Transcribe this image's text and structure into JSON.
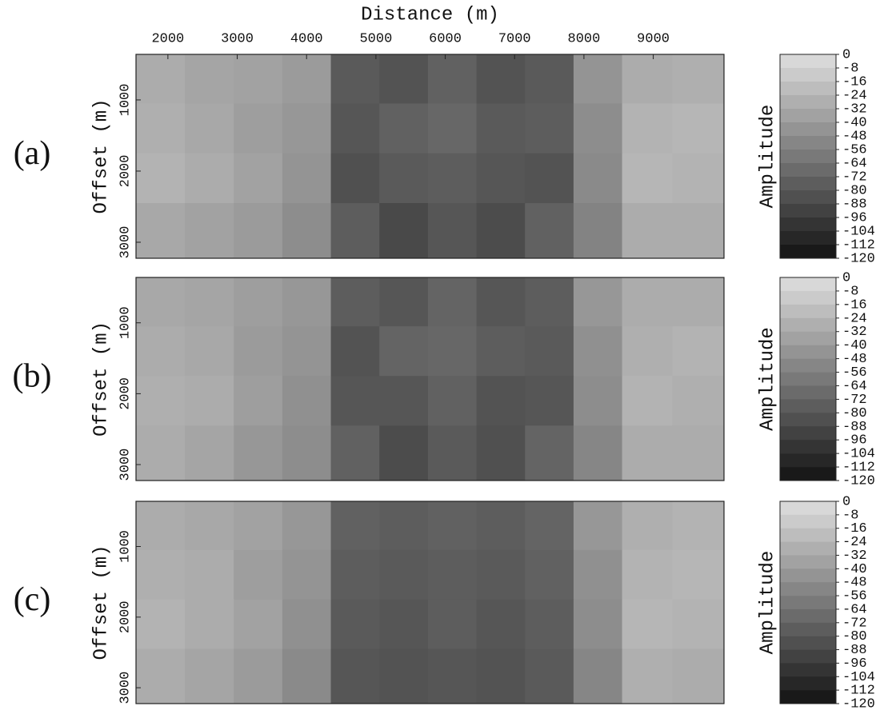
{
  "chart_data": [
    {
      "type": "heatmap",
      "title": "Distance (m)",
      "label": "(a)",
      "ylabel": "Offset (m)",
      "x": [
        1890,
        2600,
        3300,
        4000,
        4700,
        5400,
        6100,
        6800,
        7500,
        8200,
        8900,
        9650
      ],
      "y": [
        700,
        1400,
        2100,
        2800
      ],
      "z": [
        [
          -30,
          -34,
          -36,
          -40,
          -78,
          -82,
          -74,
          -82,
          -78,
          -44,
          -30,
          -28
        ],
        [
          -28,
          -32,
          -38,
          -42,
          -80,
          -74,
          -70,
          -78,
          -76,
          -48,
          -26,
          -24
        ],
        [
          -26,
          -30,
          -36,
          -44,
          -84,
          -78,
          -76,
          -80,
          -82,
          -50,
          -24,
          -26
        ],
        [
          -32,
          -36,
          -40,
          -48,
          -76,
          -88,
          -80,
          -86,
          -74,
          -54,
          -30,
          -30
        ]
      ],
      "xlim": [
        1540,
        10020
      ],
      "xticks": [
        2000,
        3000,
        4000,
        5000,
        6000,
        7000,
        8000,
        9000
      ],
      "ylim": [
        360,
        3225
      ],
      "yticks": [
        1000,
        2000,
        3000
      ],
      "colorbar": {
        "label": "Amplitude",
        "lim": [
          -120,
          0
        ],
        "ticks": [
          0,
          -8,
          -16,
          -24,
          -32,
          -40,
          -48,
          -56,
          -64,
          -72,
          -80,
          -88,
          -96,
          -104,
          -112,
          -120
        ]
      }
    },
    {
      "type": "heatmap",
      "label": "(b)",
      "ylabel": "Offset (m)",
      "x": [
        1890,
        2600,
        3300,
        4000,
        4700,
        5400,
        6100,
        6800,
        7500,
        8200,
        8900,
        9650
      ],
      "y": [
        700,
        1400,
        2100,
        2800
      ],
      "z": [
        [
          -32,
          -34,
          -38,
          -42,
          -76,
          -80,
          -72,
          -80,
          -76,
          -42,
          -30,
          -30
        ],
        [
          -30,
          -32,
          -40,
          -44,
          -82,
          -72,
          -70,
          -76,
          -78,
          -46,
          -28,
          -26
        ],
        [
          -28,
          -30,
          -38,
          -46,
          -80,
          -80,
          -74,
          -82,
          -80,
          -48,
          -26,
          -28
        ],
        [
          -30,
          -34,
          -42,
          -48,
          -74,
          -86,
          -78,
          -84,
          -72,
          -52,
          -30,
          -30
        ]
      ],
      "xlim": [
        1540,
        10020
      ],
      "ylim": [
        360,
        3225
      ],
      "yticks": [
        1000,
        2000,
        3000
      ],
      "colorbar": {
        "label": "Amplitude",
        "lim": [
          -120,
          0
        ],
        "ticks": [
          0,
          -8,
          -16,
          -24,
          -32,
          -40,
          -48,
          -56,
          -64,
          -72,
          -80,
          -88,
          -96,
          -104,
          -112,
          -120
        ]
      }
    },
    {
      "type": "heatmap",
      "label": "(c)",
      "ylabel": "Offset (m)",
      "x": [
        1890,
        2600,
        3300,
        4000,
        4700,
        5400,
        6100,
        6800,
        7500,
        8200,
        8900,
        9650
      ],
      "y": [
        700,
        1400,
        2100,
        2800
      ],
      "z": [
        [
          -30,
          -32,
          -36,
          -42,
          -74,
          -76,
          -74,
          -76,
          -72,
          -42,
          -28,
          -26
        ],
        [
          -28,
          -30,
          -38,
          -44,
          -76,
          -78,
          -76,
          -78,
          -74,
          -46,
          -26,
          -24
        ],
        [
          -26,
          -30,
          -36,
          -46,
          -78,
          -80,
          -76,
          -80,
          -76,
          -48,
          -24,
          -26
        ],
        [
          -30,
          -34,
          -40,
          -50,
          -80,
          -82,
          -80,
          -82,
          -78,
          -52,
          -28,
          -30
        ]
      ],
      "xlim": [
        1540,
        10020
      ],
      "ylim": [
        360,
        3225
      ],
      "yticks": [
        1000,
        2000,
        3000
      ],
      "colorbar": {
        "label": "Amplitude",
        "lim": [
          -120,
          0
        ],
        "ticks": [
          0,
          -8,
          -16,
          -24,
          -32,
          -40,
          -48,
          -56,
          -64,
          -72,
          -80,
          -88,
          -96,
          -104,
          -112,
          -120
        ]
      }
    }
  ]
}
